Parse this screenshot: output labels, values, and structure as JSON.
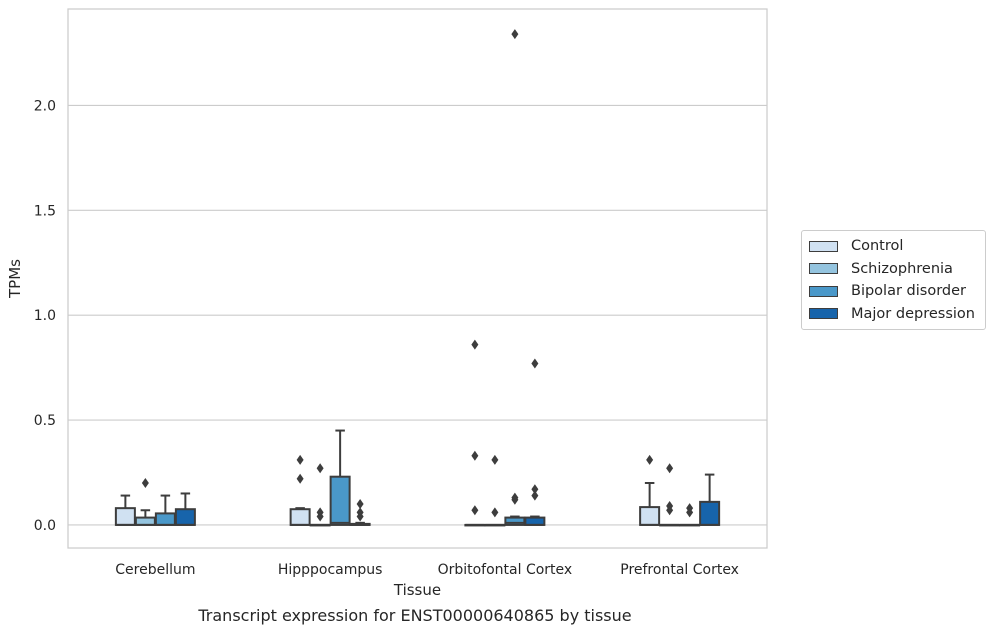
{
  "caption": "Transcript expression for ENST00000640865 by tissue",
  "chart_data": {
    "type": "box",
    "xlabel": "Tissue",
    "ylabel": "TPMs",
    "ylim": [
      -0.11,
      2.46
    ],
    "yticks": [
      0.0,
      0.5,
      1.0,
      1.5,
      2.0
    ],
    "ytick_labels": [
      "0.0",
      "0.5",
      "1.0",
      "1.5",
      "2.0"
    ],
    "grid": "horizontal",
    "legend_position": "right",
    "categories": [
      "Cerebellum",
      "Hipppocampus",
      "Orbitofontal Cortex",
      "Prefrontal Cortex"
    ],
    "series": [
      {
        "name": "Control",
        "color": "#d0e1f2"
      },
      {
        "name": "Schizophrenia",
        "color": "#94c4df"
      },
      {
        "name": "Bipolar disorder",
        "color": "#4a98c9"
      },
      {
        "name": "Major depression",
        "color": "#1764ab"
      }
    ],
    "boxes": [
      [
        {
          "q1": 0.0,
          "median": 0.0,
          "q3": 0.08,
          "whislo": 0.0,
          "whishi": 0.14,
          "fliers": []
        },
        {
          "q1": 0.0,
          "median": 0.0,
          "q3": 0.035,
          "whislo": 0.0,
          "whishi": 0.07,
          "fliers": [
            0.2
          ]
        },
        {
          "q1": 0.0,
          "median": 0.0,
          "q3": 0.055,
          "whislo": 0.0,
          "whishi": 0.14,
          "fliers": []
        },
        {
          "q1": 0.0,
          "median": 0.0,
          "q3": 0.075,
          "whislo": 0.0,
          "whishi": 0.15,
          "fliers": []
        }
      ],
      [
        {
          "q1": 0.0,
          "median": 0.0,
          "q3": 0.075,
          "whislo": 0.0,
          "whishi": 0.08,
          "fliers": [
            0.31,
            0.22
          ]
        },
        {
          "q1": 0.0,
          "median": 0.0,
          "q3": 0.0,
          "whislo": 0.0,
          "whishi": 0.0,
          "fliers": [
            0.27,
            0.06,
            0.04
          ]
        },
        {
          "q1": 0.0,
          "median": 0.01,
          "q3": 0.23,
          "whislo": 0.0,
          "whishi": 0.45,
          "fliers": []
        },
        {
          "q1": 0.0,
          "median": 0.0,
          "q3": 0.005,
          "whislo": 0.0,
          "whishi": 0.01,
          "fliers": [
            0.1,
            0.06,
            0.04
          ]
        }
      ],
      [
        {
          "q1": 0.0,
          "median": 0.0,
          "q3": 0.0,
          "whislo": 0.0,
          "whishi": 0.0,
          "fliers": [
            0.86,
            0.33,
            0.07
          ]
        },
        {
          "q1": 0.0,
          "median": 0.0,
          "q3": 0.0,
          "whislo": 0.0,
          "whishi": 0.0,
          "fliers": [
            0.31,
            0.06
          ]
        },
        {
          "q1": 0.0,
          "median": 0.01,
          "q3": 0.035,
          "whislo": 0.0,
          "whishi": 0.04,
          "fliers": [
            2.34,
            0.13,
            0.12
          ]
        },
        {
          "q1": 0.0,
          "median": 0.0,
          "q3": 0.035,
          "whislo": 0.0,
          "whishi": 0.04,
          "fliers": [
            0.77,
            0.17,
            0.14
          ]
        }
      ],
      [
        {
          "q1": 0.0,
          "median": 0.0,
          "q3": 0.085,
          "whislo": 0.0,
          "whishi": 0.2,
          "fliers": [
            0.31
          ]
        },
        {
          "q1": 0.0,
          "median": 0.0,
          "q3": 0.0,
          "whislo": 0.0,
          "whishi": 0.0,
          "fliers": [
            0.27,
            0.09,
            0.07
          ]
        },
        {
          "q1": 0.0,
          "median": 0.0,
          "q3": 0.0,
          "whislo": 0.0,
          "whishi": 0.0,
          "fliers": [
            0.08,
            0.06
          ]
        },
        {
          "q1": 0.0,
          "median": 0.0,
          "q3": 0.11,
          "whislo": 0.0,
          "whishi": 0.24,
          "fliers": []
        }
      ]
    ]
  }
}
